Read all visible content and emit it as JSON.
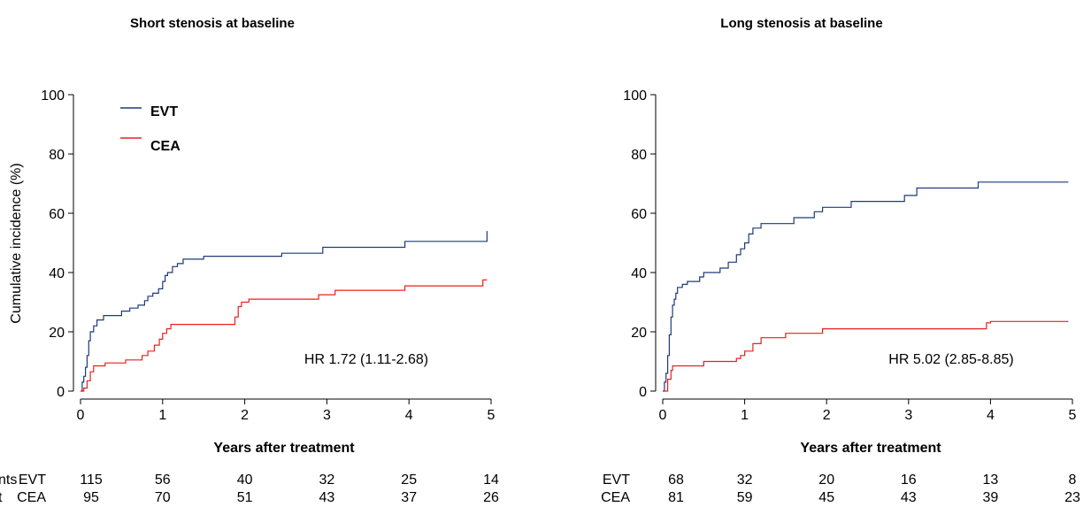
{
  "chart_data": [
    {
      "type": "line",
      "title": "Short stenosis at baseline",
      "xlabel": "Years after treatment",
      "ylabel": "Cumulative incidence (%)",
      "xlim": [
        0,
        5
      ],
      "ylim": [
        0,
        100
      ],
      "xticks": [
        "0",
        "1",
        "2",
        "3",
        "4",
        "5"
      ],
      "yticks": [
        "0",
        "20",
        "40",
        "60",
        "80",
        "100"
      ],
      "legend": {
        "position": "top-left",
        "entries": [
          "EVT",
          "CEA"
        ]
      },
      "annotation": "HR 1.72 (1.11-2.68)",
      "series": [
        {
          "name": "EVT",
          "color": "#1f3a7a",
          "steps": [
            [
              0,
              0
            ],
            [
              0.02,
              3
            ],
            [
              0.04,
              5
            ],
            [
              0.06,
              8
            ],
            [
              0.08,
              12
            ],
            [
              0.1,
              17
            ],
            [
              0.12,
              20
            ],
            [
              0.16,
              22
            ],
            [
              0.2,
              24
            ],
            [
              0.28,
              25.5
            ],
            [
              0.5,
              27
            ],
            [
              0.6,
              28
            ],
            [
              0.7,
              29
            ],
            [
              0.78,
              30.5
            ],
            [
              0.82,
              32
            ],
            [
              0.88,
              33
            ],
            [
              0.95,
              34.5
            ],
            [
              1.0,
              37
            ],
            [
              1.03,
              39
            ],
            [
              1.06,
              40
            ],
            [
              1.12,
              42
            ],
            [
              1.18,
              43
            ],
            [
              1.25,
              44.5
            ],
            [
              1.5,
              45.5
            ],
            [
              2.45,
              46.5
            ],
            [
              2.95,
              48.5
            ],
            [
              3.95,
              50.5
            ],
            [
              4.95,
              54
            ]
          ],
          "end_x": 4.95
        },
        {
          "name": "CEA",
          "color": "#e8201e",
          "steps": [
            [
              0,
              0
            ],
            [
              0.04,
              1
            ],
            [
              0.08,
              3.5
            ],
            [
              0.12,
              6.5
            ],
            [
              0.16,
              8.5
            ],
            [
              0.3,
              9.5
            ],
            [
              0.55,
              10.5
            ],
            [
              0.75,
              12
            ],
            [
              0.82,
              13.5
            ],
            [
              0.9,
              15.5
            ],
            [
              0.96,
              17.5
            ],
            [
              1.0,
              19.5
            ],
            [
              1.05,
              21
            ],
            [
              1.1,
              22.5
            ],
            [
              1.88,
              25
            ],
            [
              1.92,
              28.5
            ],
            [
              1.96,
              30
            ],
            [
              2.05,
              31
            ],
            [
              2.9,
              32.5
            ],
            [
              3.1,
              34
            ],
            [
              3.95,
              35.5
            ],
            [
              4.9,
              37.5
            ]
          ],
          "end_x": 4.95
        }
      ],
      "risk_table": {
        "header": [
          "nts",
          "t"
        ],
        "rows": [
          {
            "group": "EVT",
            "values": [
              "115",
              "56",
              "40",
              "32",
              "25",
              "14"
            ]
          },
          {
            "group": "CEA",
            "values": [
              "95",
              "70",
              "51",
              "43",
              "37",
              "26"
            ]
          }
        ]
      }
    },
    {
      "type": "line",
      "title": "Long stenosis at baseline",
      "xlabel": "Years after treatment",
      "ylabel": "",
      "xlim": [
        0,
        5
      ],
      "ylim": [
        0,
        100
      ],
      "xticks": [
        "0",
        "1",
        "2",
        "3",
        "4",
        "5"
      ],
      "yticks": [
        "0",
        "20",
        "40",
        "60",
        "80",
        "100"
      ],
      "annotation": "HR 5.02 (2.85-8.85)",
      "series": [
        {
          "name": "EVT",
          "color": "#1f3a7a",
          "steps": [
            [
              0,
              0
            ],
            [
              0.02,
              3
            ],
            [
              0.04,
              6
            ],
            [
              0.06,
              12
            ],
            [
              0.08,
              19
            ],
            [
              0.1,
              25
            ],
            [
              0.12,
              29
            ],
            [
              0.14,
              31
            ],
            [
              0.16,
              33
            ],
            [
              0.18,
              35
            ],
            [
              0.24,
              36
            ],
            [
              0.3,
              37
            ],
            [
              0.45,
              38.5
            ],
            [
              0.5,
              40
            ],
            [
              0.7,
              41.5
            ],
            [
              0.8,
              43.5
            ],
            [
              0.9,
              46
            ],
            [
              0.95,
              48
            ],
            [
              1.0,
              50
            ],
            [
              1.05,
              53
            ],
            [
              1.1,
              55
            ],
            [
              1.2,
              56.5
            ],
            [
              1.6,
              58.5
            ],
            [
              1.85,
              60.5
            ],
            [
              1.95,
              62
            ],
            [
              2.3,
              64
            ],
            [
              2.95,
              66
            ],
            [
              3.1,
              68.5
            ],
            [
              3.85,
              70.5
            ]
          ],
          "end_x": 4.95
        },
        {
          "name": "CEA",
          "color": "#e8201e",
          "steps": [
            [
              0,
              0
            ],
            [
              0.06,
              4
            ],
            [
              0.1,
              7
            ],
            [
              0.12,
              8.5
            ],
            [
              0.5,
              10
            ],
            [
              0.9,
              11
            ],
            [
              0.95,
              12
            ],
            [
              1.0,
              13.5
            ],
            [
              1.1,
              16
            ],
            [
              1.2,
              18
            ],
            [
              1.5,
              19.5
            ],
            [
              1.95,
              21
            ],
            [
              3.95,
              23
            ],
            [
              4.0,
              23.5
            ]
          ],
          "end_x": 4.95
        }
      ],
      "risk_table": {
        "rows": [
          {
            "group": "EVT",
            "values": [
              "68",
              "32",
              "20",
              "16",
              "13",
              "8"
            ]
          },
          {
            "group": "CEA",
            "values": [
              "81",
              "59",
              "45",
              "43",
              "39",
              "23"
            ]
          }
        ]
      }
    }
  ]
}
